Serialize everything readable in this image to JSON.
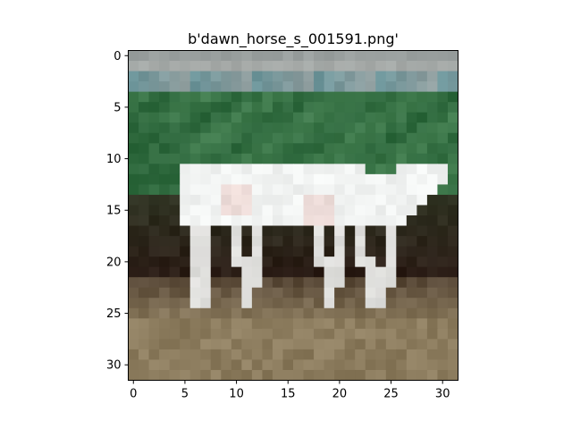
{
  "figure": {
    "title": "b'dawn_horse_s_001591.png'"
  },
  "axes": {
    "x_ticks": [
      "0",
      "5",
      "10",
      "15",
      "20",
      "25",
      "30"
    ],
    "y_ticks": [
      "0",
      "5",
      "10",
      "15",
      "20",
      "25",
      "30"
    ],
    "x_range": [
      -0.5,
      31.5
    ],
    "y_range": [
      -0.5,
      31.5
    ]
  },
  "image": {
    "description": "32x32 pixelated photo of a white horse walking on a dirt ground in front of green grass and a grey sky",
    "grid_size": 32
  },
  "colors": {
    "sky": "#9aa09f",
    "grass": "#3f7a4c",
    "grass_dark": "#255f35",
    "horse": "#f1f3f2",
    "shadow": "#2a1a14",
    "dirt": "#8c7c5e"
  }
}
